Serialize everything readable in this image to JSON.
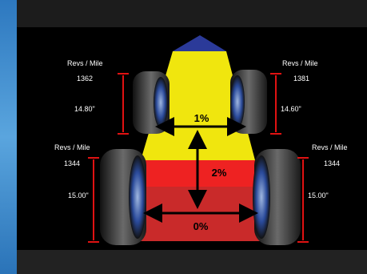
{
  "diagram": {
    "title": "",
    "wheels": {
      "front_left": {
        "label": "Revs / Mile",
        "revs": "1362",
        "height": "14.80\""
      },
      "front_right": {
        "label": "Revs / Mile",
        "revs": "1381",
        "height": "14.60\""
      },
      "rear_left": {
        "label": "Revs / Mile",
        "revs": "1344",
        "height": "15.00\""
      },
      "rear_right": {
        "label": "Revs / Mile",
        "revs": "1344",
        "height": "15.00\""
      }
    },
    "stagger": {
      "front": "1%",
      "middle": "2%",
      "rear": "0%"
    },
    "colors": {
      "front_zone": "#f0e60e",
      "middle_zone": "#ee2222",
      "rear_zone": "#c92a2a",
      "nose": "#2b3a99",
      "markers": "#e01212"
    }
  }
}
